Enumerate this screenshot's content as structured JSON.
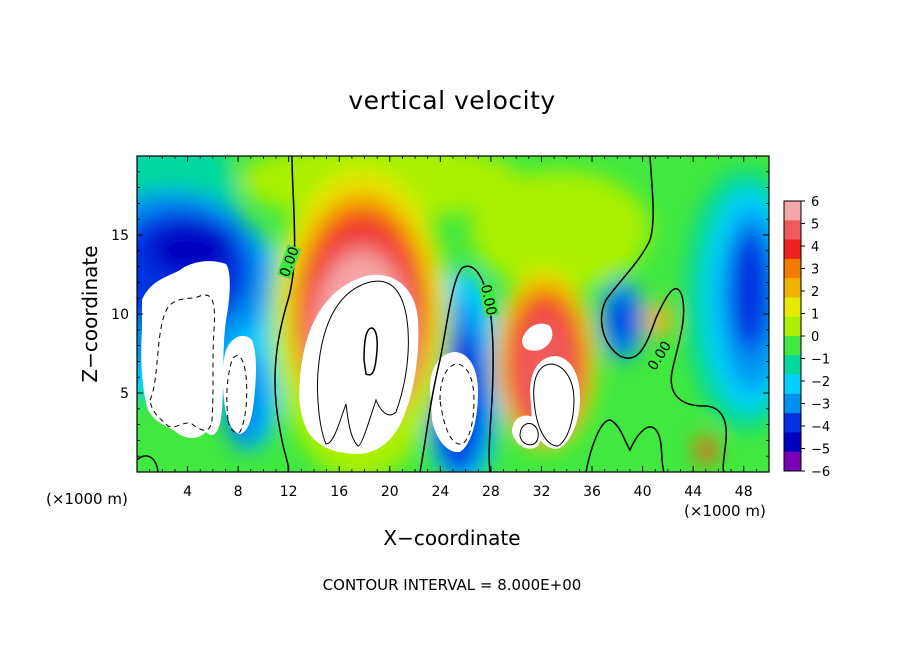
{
  "chart_data": {
    "type": "heatmap",
    "title": "vertical velocity",
    "xlabel": "X−coordinate",
    "ylabel": "Z−coordinate",
    "x_unit_label": "(×1000 m)",
    "xlim": [
      0,
      50
    ],
    "ylim": [
      0,
      20
    ],
    "x_ticks": [
      4,
      8,
      12,
      16,
      20,
      24,
      28,
      32,
      36,
      40,
      44,
      48
    ],
    "y_ticks": [
      5,
      10,
      15
    ],
    "colorbar": {
      "ticks": [
        6,
        5,
        4,
        3,
        2,
        1,
        0,
        -1,
        -2,
        -3,
        -4,
        -5,
        -6
      ],
      "tick_labels": [
        "6",
        "5",
        "4",
        "3",
        "2",
        "1",
        "0",
        "−1",
        "−2",
        "−3",
        "−4",
        "−5",
        "−6"
      ],
      "range": [
        -6,
        6
      ],
      "colors_top_to_bottom": [
        "#f5a6a6",
        "#f05a5a",
        "#f02020",
        "#f57a00",
        "#f0b400",
        "#e8e800",
        "#aaf000",
        "#40e840",
        "#00d8a0",
        "#00d0ff",
        "#0090f0",
        "#0030e0",
        "#0000c0",
        "#7a00b8"
      ],
      "saturation_color": "#ffffff"
    },
    "contour_labels": [
      "0.00",
      "0.00",
      "0.00"
    ],
    "contour_interval": "CONTOUR INTERVAL = 8.000E+00",
    "features": [
      {
        "x": 4.5,
        "z": 8,
        "value": -12,
        "kind": "downdraft"
      },
      {
        "x": 7.5,
        "z": 5.5,
        "value": -9,
        "kind": "downdraft"
      },
      {
        "x": 18,
        "z": 7.5,
        "value": 14,
        "kind": "updraft"
      },
      {
        "x": 25.5,
        "z": 5,
        "value": -9,
        "kind": "downdraft"
      },
      {
        "x": 31.5,
        "z": 6,
        "value": 9,
        "kind": "updraft"
      },
      {
        "x": 33.5,
        "z": 4.5,
        "value": 10,
        "kind": "updraft"
      },
      {
        "x": 38.5,
        "z": 10,
        "value": -4,
        "kind": "downdraft"
      },
      {
        "x": 45,
        "z": 1.5,
        "value": 3,
        "kind": "updraft"
      }
    ]
  }
}
